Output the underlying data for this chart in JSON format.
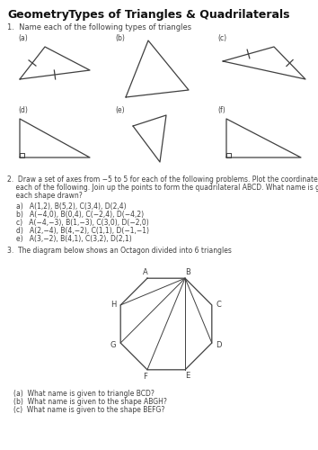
{
  "title_geo": "Geometry",
  "title_rest": "   Types of Triangles & Quadrilaterals",
  "q1_text": "1.  Name each of the following types of triangles",
  "q2_line1": "2.  Draw a set of axes from −5 to 5 for each of the following problems. Plot the coordinates for",
  "q2_line2": "    each of the following. Join up the points to form the quadrilateral ABCD. What name is given to",
  "q2_line3": "    each shape drawn?",
  "q2_items": [
    "a)   A(1,2), B(5,2), C(3,4), D(2,4)",
    "b)   A(−4,0), B(0,4), C(−2,4), D(−4,2)",
    "c)   A(−4,−3), B(1,−3), C(3,0), D(−2,0)",
    "d)   A(2,−4), B(4,−2), C(1,1), D(−1,−1)",
    "e)   A(3,−2), B(4,1), C(3,2), D(2,1)"
  ],
  "q3_text": "3.  The diagram below shows an Octagon divided into 6 triangles",
  "q3_items": [
    "(a)  What name is given to triangle BCD?",
    "(b)  What name is given to the shape ABGH?",
    "(c)  What name is given to the shape BEFG?"
  ],
  "bg_color": "#ffffff",
  "line_color": "#404040"
}
